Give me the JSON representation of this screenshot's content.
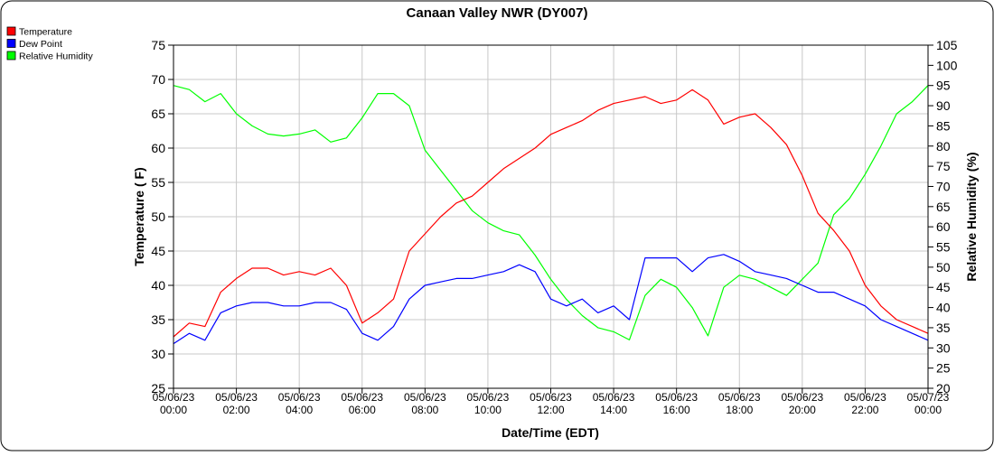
{
  "chart_data": {
    "type": "line",
    "title": "Canaan Valley NWR (DY007)",
    "xlabel": "Date/Time (EDT)",
    "ylabel": "Temperature ( F)",
    "y2label": "Relative Humidity (%)",
    "ylim": [
      25,
      75
    ],
    "y2lim": [
      20,
      105
    ],
    "yticks": [
      "25",
      "30",
      "35",
      "40",
      "45",
      "50",
      "55",
      "60",
      "65",
      "70",
      "75"
    ],
    "y2ticks": [
      "20",
      "25",
      "30",
      "35",
      "40",
      "45",
      "50",
      "55",
      "60",
      "65",
      "70",
      "75",
      "80",
      "85",
      "90",
      "95",
      "100",
      "105"
    ],
    "xlim_hours": [
      0,
      24
    ],
    "xticks": [
      {
        "date": "05/06/23",
        "time": "00:00"
      },
      {
        "date": "05/06/23",
        "time": "02:00"
      },
      {
        "date": "05/06/23",
        "time": "04:00"
      },
      {
        "date": "05/06/23",
        "time": "06:00"
      },
      {
        "date": "05/06/23",
        "time": "08:00"
      },
      {
        "date": "05/06/23",
        "time": "10:00"
      },
      {
        "date": "05/06/23",
        "time": "12:00"
      },
      {
        "date": "05/06/23",
        "time": "14:00"
      },
      {
        "date": "05/06/23",
        "time": "16:00"
      },
      {
        "date": "05/06/23",
        "time": "18:00"
      },
      {
        "date": "05/06/23",
        "time": "20:00"
      },
      {
        "date": "05/06/23",
        "time": "22:00"
      },
      {
        "date": "05/07/23",
        "time": "00:00"
      }
    ],
    "grid": true,
    "legend_position": "top-left",
    "x_step_hours": 0.5,
    "series": [
      {
        "name": "Temperature",
        "color": "#ff0000",
        "axis": "left",
        "values": [
          32.5,
          34.5,
          34,
          39,
          41,
          42.5,
          42.5,
          41.5,
          42,
          41.5,
          42.5,
          40,
          34.5,
          36,
          38,
          45,
          47.5,
          50,
          52,
          53,
          55,
          57,
          58.5,
          60,
          62,
          63,
          64,
          65.5,
          66.5,
          67,
          67.5,
          66.5,
          67,
          68.5,
          67,
          63.5,
          64.5,
          65,
          63,
          60.5,
          56,
          50.5,
          48,
          45,
          40,
          37,
          35,
          34,
          33
        ]
      },
      {
        "name": "Dew Point",
        "color": "#0000ff",
        "axis": "left",
        "values": [
          31.5,
          33,
          32,
          36,
          37,
          37.5,
          37.5,
          37,
          37,
          37.5,
          37.5,
          36.5,
          33,
          32,
          34,
          38,
          40,
          40.5,
          41,
          41,
          41.5,
          42,
          43,
          42,
          38,
          37,
          38,
          36,
          37,
          35,
          44,
          44,
          44,
          42,
          44,
          44.5,
          43.5,
          42,
          41.5,
          41,
          40,
          39,
          39,
          38,
          37,
          35,
          34,
          33,
          32
        ]
      },
      {
        "name": "Relative Humidity",
        "color": "#00ff00",
        "axis": "right",
        "values": [
          95,
          94,
          91,
          93,
          88,
          85,
          83,
          82.5,
          83,
          84,
          81,
          82,
          87,
          93,
          93,
          90,
          79,
          74,
          69,
          64,
          61,
          59,
          58,
          53,
          47,
          42,
          38,
          35,
          34,
          32,
          43,
          47,
          45,
          40,
          33,
          45,
          48,
          47,
          45,
          43,
          47,
          51,
          63,
          67,
          73,
          80,
          88,
          91,
          95
        ]
      }
    ]
  }
}
